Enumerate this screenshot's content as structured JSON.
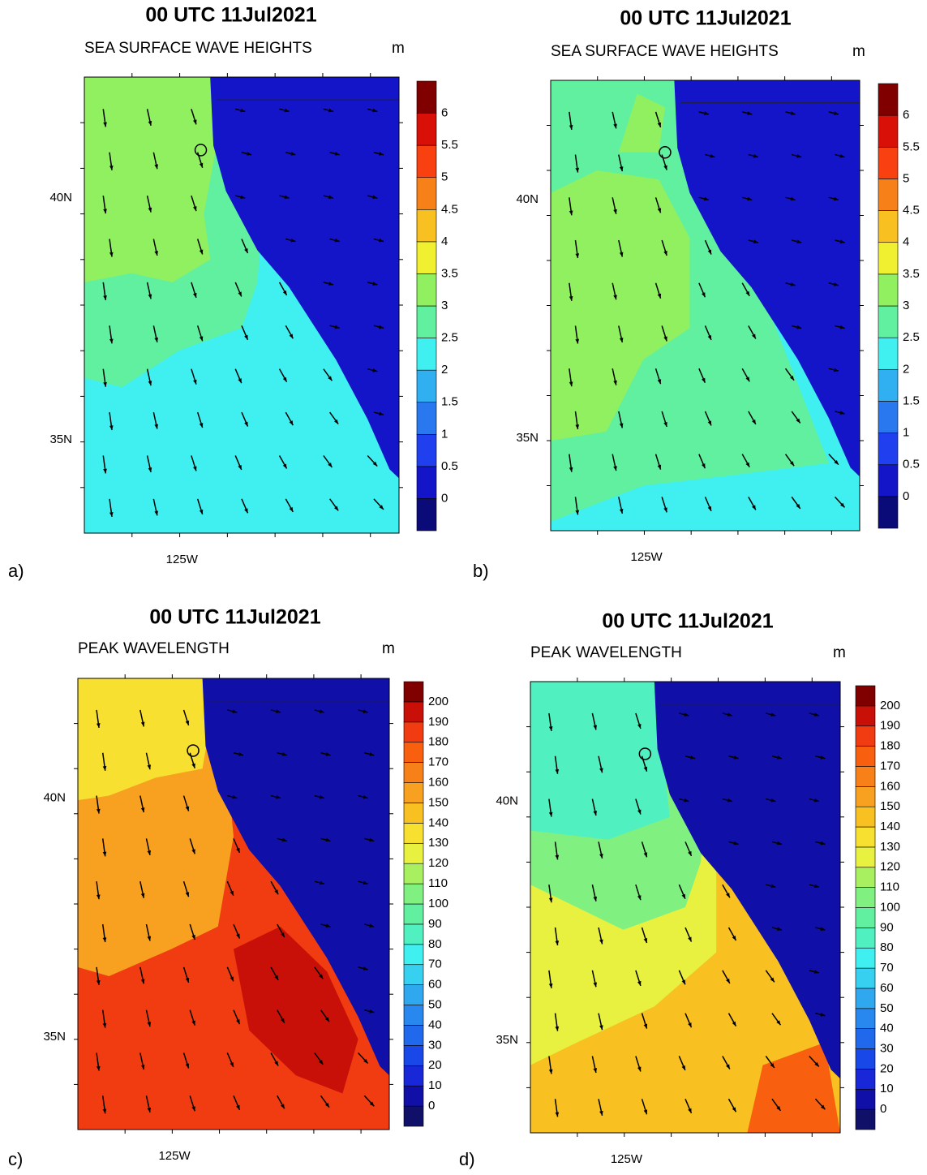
{
  "panels": [
    {
      "label": "a)",
      "title": "00 UTC 11Jul2021",
      "subtitle": "SEA SURFACE WAVE HEIGHTS",
      "unit": "m",
      "lat_labels": [
        "40N",
        "35N"
      ],
      "lon_labels": [
        "125W"
      ],
      "colorbar": {
        "levels": [
          0,
          0.5,
          1,
          1.5,
          2,
          2.5,
          3,
          3.5,
          4,
          4.5,
          5,
          5.5,
          6
        ],
        "colors": [
          "#0a0a78",
          "#1414c8",
          "#2040f0",
          "#2a78f0",
          "#30b0f0",
          "#40f0f0",
          "#60f0a0",
          "#90f060",
          "#f0f030",
          "#f8c020",
          "#f88018",
          "#f84010",
          "#d81008",
          "#800000"
        ]
      }
    },
    {
      "label": "b)",
      "title": "00 UTC 11Jul2021",
      "subtitle": "SEA SURFACE WAVE HEIGHTS",
      "unit": "m",
      "lat_labels": [
        "40N",
        "35N"
      ],
      "lon_labels": [
        "125W"
      ],
      "colorbar": {
        "levels": [
          0,
          0.5,
          1,
          1.5,
          2,
          2.5,
          3,
          3.5,
          4,
          4.5,
          5,
          5.5,
          6
        ],
        "colors": [
          "#0a0a78",
          "#1414c8",
          "#2040f0",
          "#2a78f0",
          "#30b0f0",
          "#40f0f0",
          "#60f0a0",
          "#90f060",
          "#f0f030",
          "#f8c020",
          "#f88018",
          "#f84010",
          "#d81008",
          "#800000"
        ]
      }
    },
    {
      "label": "c)",
      "title": "00 UTC 11Jul2021",
      "subtitle": "PEAK WAVELENGTH",
      "unit": "m",
      "lat_labels": [
        "40N",
        "35N"
      ],
      "lon_labels": [
        "125W"
      ],
      "colorbar": {
        "levels": [
          0,
          10,
          20,
          30,
          40,
          50,
          60,
          70,
          80,
          90,
          100,
          110,
          120,
          130,
          140,
          150,
          160,
          170,
          180,
          190,
          200
        ],
        "colors": [
          "#101068",
          "#1010a8",
          "#1828d8",
          "#1848e8",
          "#2068ec",
          "#2888f0",
          "#30a8f0",
          "#38d0f0",
          "#40f0f0",
          "#50f0c0",
          "#60f0a0",
          "#80f080",
          "#a8f060",
          "#e8f040",
          "#f8e030",
          "#f8c020",
          "#f8a020",
          "#f88018",
          "#f86010",
          "#f03c10",
          "#c81008",
          "#800000"
        ]
      }
    },
    {
      "label": "d)",
      "title": "00 UTC 11Jul2021",
      "subtitle": "PEAK WAVELENGTH",
      "unit": "m",
      "lat_labels": [
        "40N",
        "35N"
      ],
      "lon_labels": [
        "125W"
      ],
      "colorbar": {
        "levels": [
          0,
          10,
          20,
          30,
          40,
          50,
          60,
          70,
          80,
          90,
          100,
          110,
          120,
          130,
          140,
          150,
          160,
          170,
          180,
          190,
          200
        ],
        "colors": [
          "#101068",
          "#1010a8",
          "#1828d8",
          "#1848e8",
          "#2068ec",
          "#2888f0",
          "#30a8f0",
          "#38d0f0",
          "#40f0f0",
          "#50f0c0",
          "#60f0a0",
          "#80f080",
          "#a8f060",
          "#e8f040",
          "#f8e030",
          "#f8c020",
          "#f8a020",
          "#f88018",
          "#f86010",
          "#f03c10",
          "#c81008",
          "#800000"
        ]
      }
    }
  ]
}
